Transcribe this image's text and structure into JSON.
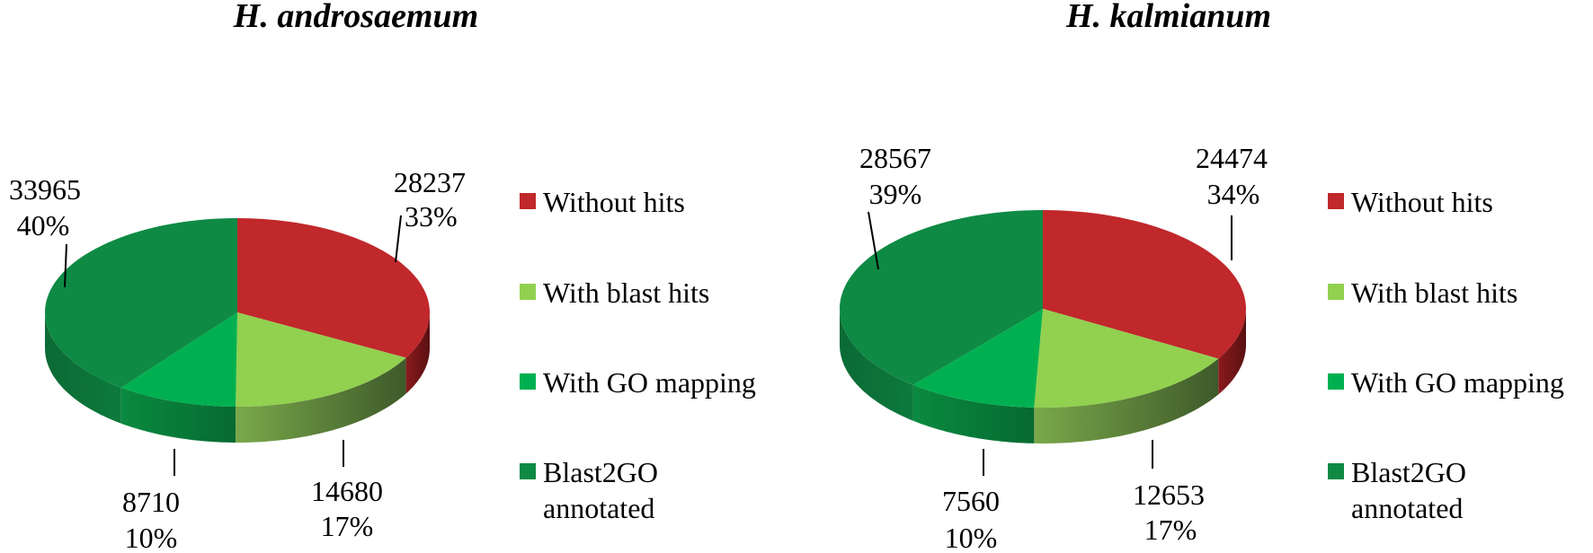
{
  "chart_data": [
    {
      "type": "pie",
      "title": "H. androsaemum",
      "categories": [
        "Without hits",
        "With blast hits",
        "With GO mapping",
        "Blast2GO annotated"
      ],
      "values": [
        28237,
        14680,
        8710,
        33965
      ],
      "labels": [
        {
          "count": "28237",
          "percent": "33%"
        },
        {
          "count": "14680",
          "percent": "17%"
        },
        {
          "count": "8710",
          "percent": "10%"
        },
        {
          "count": "33965",
          "percent": "40%"
        }
      ]
    },
    {
      "type": "pie",
      "title": "H. kalmianum",
      "categories": [
        "Without hits",
        "With blast hits",
        "With GO mapping",
        "Blast2GO annotated"
      ],
      "values": [
        24474,
        12653,
        7560,
        28567
      ],
      "labels": [
        {
          "count": "24474",
          "percent": "34%"
        },
        {
          "count": "12653",
          "percent": "17%"
        },
        {
          "count": "7560",
          "percent": "10%"
        },
        {
          "count": "28567",
          "percent": "39%"
        }
      ]
    }
  ],
  "legend": {
    "items": [
      {
        "label": "Without hits"
      },
      {
        "label": "With blast hits"
      },
      {
        "label": "With GO mapping"
      },
      {
        "label_line1": "Blast2GO",
        "label_line2": "annotated"
      }
    ]
  },
  "colors": {
    "Without hits": "#C0282B",
    "With blast hits": "#92D050",
    "With GO mapping": "#00B050",
    "Blast2GO annotated": "#0E8A44"
  }
}
